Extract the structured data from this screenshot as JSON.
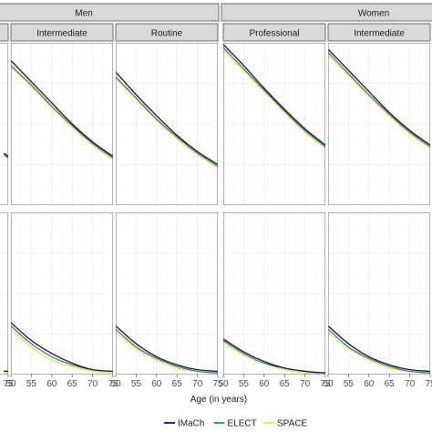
{
  "chart_data": {
    "type": "line",
    "xlabel": "Age (in years)",
    "x_ticks": [
      50,
      55,
      60,
      65,
      70,
      75
    ],
    "xlim": [
      50,
      75
    ],
    "ylim": [
      0,
      1
    ],
    "grid": true,
    "legend_position": "bottom",
    "colors": {
      "IMaCh": "#1a1033",
      "ELECT": "#2b7f86",
      "SPACE": "#e8e04a"
    },
    "facet_headers": [
      {
        "label": "Men",
        "span": "left"
      },
      {
        "label": "Women",
        "span": "right"
      }
    ],
    "panels": [
      {
        "sex": "Men",
        "class": "",
        "row": 1,
        "partial": "left",
        "x": [
          74,
          75
        ],
        "series": [
          {
            "name": "IMaCh",
            "values": [
              0.32,
              0.3
            ]
          },
          {
            "name": "ELECT",
            "values": [
              0.31,
              0.29
            ]
          },
          {
            "name": "SPACE",
            "values": [
              0.31,
              0.29
            ]
          }
        ]
      },
      {
        "sex": "Men",
        "class": "Intermediate",
        "row": 1,
        "x": [
          50,
          55,
          60,
          65,
          70,
          75
        ],
        "series": [
          {
            "name": "IMaCh",
            "values": [
              0.89,
              0.76,
              0.63,
              0.5,
              0.39,
              0.3
            ]
          },
          {
            "name": "ELECT",
            "values": [
              0.86,
              0.74,
              0.61,
              0.49,
              0.38,
              0.29
            ]
          },
          {
            "name": "SPACE",
            "values": [
              0.85,
              0.73,
              0.6,
              0.48,
              0.37,
              0.28
            ]
          }
        ]
      },
      {
        "sex": "Men",
        "class": "Routine",
        "row": 1,
        "x": [
          50,
          55,
          60,
          65,
          70,
          75
        ],
        "series": [
          {
            "name": "IMaCh",
            "values": [
              0.82,
              0.68,
              0.55,
              0.43,
              0.33,
              0.25
            ]
          },
          {
            "name": "ELECT",
            "values": [
              0.79,
              0.66,
              0.53,
              0.42,
              0.32,
              0.24
            ]
          },
          {
            "name": "SPACE",
            "values": [
              0.78,
              0.65,
              0.52,
              0.41,
              0.31,
              0.23
            ]
          }
        ]
      },
      {
        "sex": "Women",
        "class": "Professional",
        "row": 1,
        "x": [
          50,
          55,
          60,
          65,
          70,
          75
        ],
        "series": [
          {
            "name": "IMaCh",
            "values": [
              0.99,
              0.86,
              0.72,
              0.59,
              0.47,
              0.37
            ]
          },
          {
            "name": "ELECT",
            "values": [
              0.97,
              0.84,
              0.71,
              0.58,
              0.46,
              0.36
            ]
          },
          {
            "name": "SPACE",
            "values": [
              0.95,
              0.83,
              0.7,
              0.57,
              0.45,
              0.35
            ]
          }
        ]
      },
      {
        "sex": "Women",
        "class": "Intermediate",
        "row": 1,
        "partial": "right",
        "x": [
          50,
          55,
          60,
          65,
          70,
          75
        ],
        "series": [
          {
            "name": "IMaCh",
            "values": [
              0.96,
              0.83,
              0.7,
              0.57,
              0.46,
              0.37
            ]
          },
          {
            "name": "ELECT",
            "values": [
              0.94,
              0.81,
              0.68,
              0.56,
              0.45,
              0.36
            ]
          },
          {
            "name": "SPACE",
            "values": [
              0.92,
              0.8,
              0.67,
              0.55,
              0.44,
              0.35
            ]
          }
        ]
      },
      {
        "sex": "Men",
        "class": "",
        "row": 2,
        "partial": "left",
        "x": [
          74,
          75
        ],
        "series": [
          {
            "name": "IMaCh",
            "values": [
              0.02,
              0.02
            ]
          },
          {
            "name": "ELECT",
            "values": [
              0.02,
              0.02
            ]
          },
          {
            "name": "SPACE",
            "values": [
              0.01,
              0.01
            ]
          }
        ]
      },
      {
        "sex": "Men",
        "class": "Intermediate",
        "row": 2,
        "x": [
          50,
          55,
          60,
          65,
          70,
          75
        ],
        "series": [
          {
            "name": "IMaCh",
            "values": [
              0.32,
              0.21,
              0.13,
              0.07,
              0.03,
              0.02
            ]
          },
          {
            "name": "ELECT",
            "values": [
              0.3,
              0.19,
              0.11,
              0.06,
              0.03,
              0.02
            ]
          },
          {
            "name": "SPACE",
            "values": [
              0.28,
              0.17,
              0.09,
              0.05,
              0.02,
              0.01
            ]
          }
        ]
      },
      {
        "sex": "Men",
        "class": "Routine",
        "row": 2,
        "x": [
          50,
          55,
          60,
          65,
          70,
          75
        ],
        "series": [
          {
            "name": "IMaCh",
            "values": [
              0.3,
              0.19,
              0.11,
              0.06,
              0.03,
              0.02
            ]
          },
          {
            "name": "ELECT",
            "values": [
              0.28,
              0.17,
              0.1,
              0.05,
              0.02,
              0.01
            ]
          },
          {
            "name": "SPACE",
            "values": [
              0.26,
              0.16,
              0.09,
              0.04,
              0.02,
              0.01
            ]
          }
        ]
      },
      {
        "sex": "Women",
        "class": "Professional",
        "row": 2,
        "x": [
          50,
          55,
          60,
          65,
          70,
          75
        ],
        "series": [
          {
            "name": "IMaCh",
            "values": [
              0.22,
              0.14,
              0.08,
              0.04,
              0.02,
              0.01
            ]
          },
          {
            "name": "ELECT",
            "values": [
              0.21,
              0.13,
              0.07,
              0.04,
              0.02,
              0.01
            ]
          },
          {
            "name": "SPACE",
            "values": [
              0.2,
              0.12,
              0.07,
              0.03,
              0.01,
              0.01
            ]
          }
        ]
      },
      {
        "sex": "Women",
        "class": "Intermediate",
        "row": 2,
        "partial": "right",
        "x": [
          50,
          55,
          60,
          65,
          70,
          75
        ],
        "series": [
          {
            "name": "IMaCh",
            "values": [
              0.3,
              0.19,
              0.11,
              0.06,
              0.03,
              0.02
            ]
          },
          {
            "name": "ELECT",
            "values": [
              0.28,
              0.17,
              0.1,
              0.05,
              0.02,
              0.01
            ]
          },
          {
            "name": "SPACE",
            "values": [
              0.26,
              0.16,
              0.09,
              0.04,
              0.02,
              0.01
            ]
          }
        ]
      }
    ],
    "legend": [
      "IMaCh",
      "ELECT",
      "SPACE"
    ]
  }
}
